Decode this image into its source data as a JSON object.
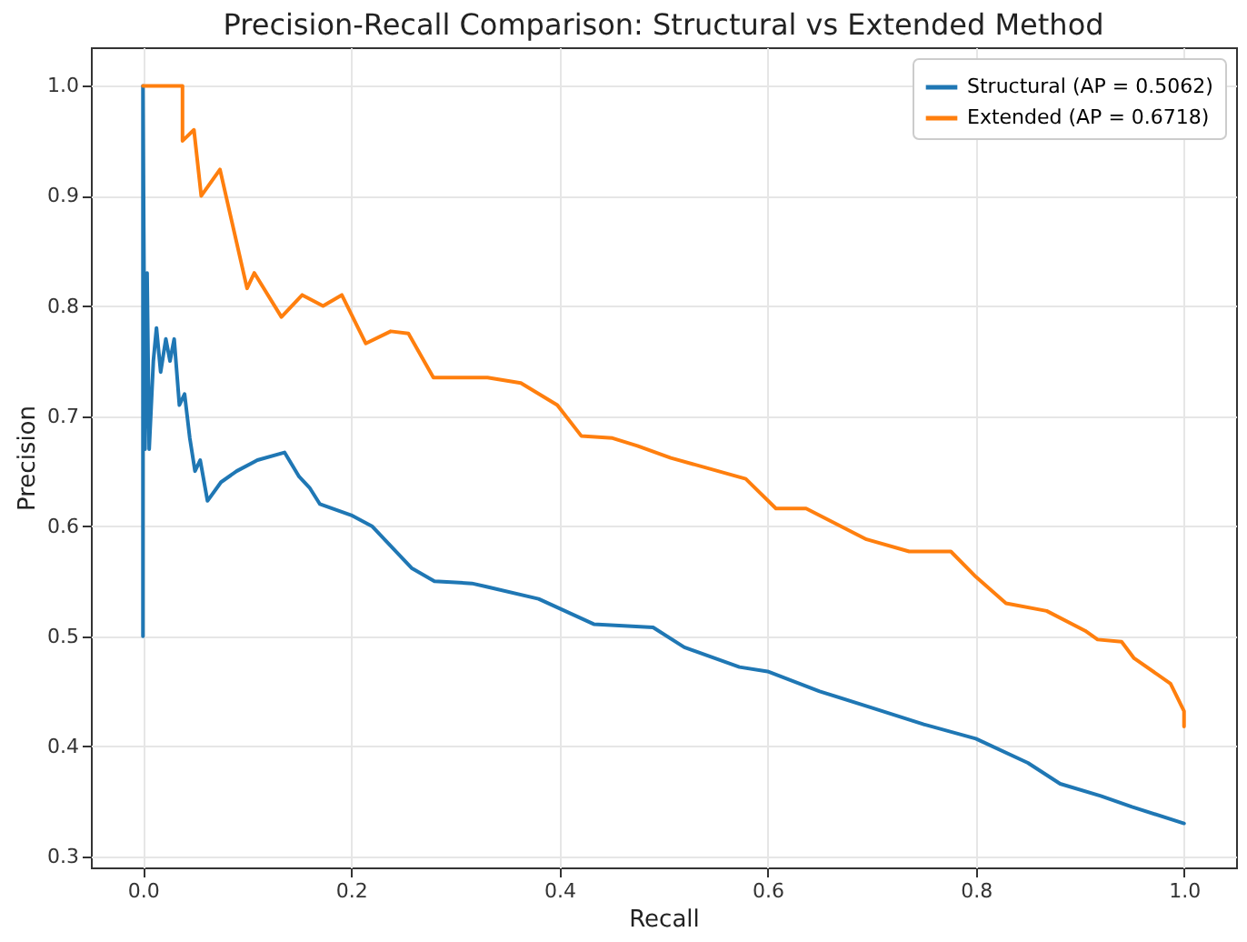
{
  "chart_data": {
    "type": "line",
    "title": "Precision-Recall Comparison: Structural vs Extended Method",
    "xlabel": "Recall",
    "ylabel": "Precision",
    "xlim": [
      -0.05,
      1.05
    ],
    "ylim": [
      0.29,
      1.035
    ],
    "xticks": [
      {
        "value": 0,
        "label": "0.0"
      },
      {
        "value": 0.2,
        "label": "0.2"
      },
      {
        "value": 0.4,
        "label": "0.4"
      },
      {
        "value": 0.6,
        "label": "0.6"
      },
      {
        "value": 0.8,
        "label": "0.8"
      },
      {
        "value": 1,
        "label": "1.0"
      }
    ],
    "yticks": [
      {
        "value": 0.3,
        "label": "0.3"
      },
      {
        "value": 0.4,
        "label": "0.4"
      },
      {
        "value": 0.5,
        "label": "0.5"
      },
      {
        "value": 0.6,
        "label": "0.6"
      },
      {
        "value": 0.7,
        "label": "0.7"
      },
      {
        "value": 0.8,
        "label": "0.8"
      },
      {
        "value": 0.9,
        "label": "0.9"
      },
      {
        "value": 1,
        "label": "1.0"
      }
    ],
    "grid": true,
    "legend": "top right",
    "line_style": "solid",
    "series": [
      {
        "name": "Structural (AP = 0.5062)",
        "color": "#1f77b4",
        "x": [
          0,
          0,
          0.002,
          0.004,
          0.006,
          0.01,
          0.013,
          0.017,
          0.022,
          0.026,
          0.03,
          0.035,
          0.04,
          0.045,
          0.05,
          0.055,
          0.062,
          0.075,
          0.09,
          0.11,
          0.136,
          0.15,
          0.16,
          0.17,
          0.2,
          0.22,
          0.24,
          0.258,
          0.28,
          0.316,
          0.33,
          0.38,
          0.433,
          0.49,
          0.52,
          0.573,
          0.6,
          0.65,
          0.7,
          0.75,
          0.8,
          0.85,
          0.881,
          0.92,
          0.95,
          1.0
        ],
        "values": [
          0.5,
          1.0,
          0.67,
          0.83,
          0.67,
          0.75,
          0.78,
          0.74,
          0.77,
          0.75,
          0.77,
          0.71,
          0.72,
          0.68,
          0.65,
          0.66,
          0.623,
          0.64,
          0.65,
          0.66,
          0.667,
          0.645,
          0.635,
          0.62,
          0.61,
          0.6,
          0.58,
          0.562,
          0.55,
          0.548,
          0.545,
          0.534,
          0.511,
          0.508,
          0.49,
          0.472,
          0.468,
          0.45,
          0.435,
          0.42,
          0.407,
          0.385,
          0.366,
          0.355,
          0.345,
          0.33
        ]
      },
      {
        "name": "Extended (AP = 0.6718)",
        "color": "#ff7f0e",
        "x": [
          0,
          0.038,
          0.038,
          0.049,
          0.056,
          0.074,
          0.1,
          0.107,
          0.133,
          0.153,
          0.173,
          0.191,
          0.214,
          0.238,
          0.255,
          0.279,
          0.331,
          0.363,
          0.398,
          0.421,
          0.451,
          0.475,
          0.507,
          0.579,
          0.608,
          0.637,
          0.695,
          0.736,
          0.776,
          0.8,
          0.829,
          0.868,
          0.905,
          0.917,
          0.94,
          0.952,
          0.987,
          1.0,
          1.0
        ],
        "values": [
          1.0,
          1.0,
          0.95,
          0.96,
          0.9,
          0.924,
          0.816,
          0.83,
          0.79,
          0.81,
          0.8,
          0.81,
          0.766,
          0.777,
          0.775,
          0.735,
          0.735,
          0.73,
          0.71,
          0.682,
          0.68,
          0.673,
          0.662,
          0.643,
          0.616,
          0.616,
          0.588,
          0.577,
          0.577,
          0.554,
          0.53,
          0.523,
          0.505,
          0.497,
          0.495,
          0.48,
          0.457,
          0.432,
          0.418
        ]
      }
    ]
  }
}
